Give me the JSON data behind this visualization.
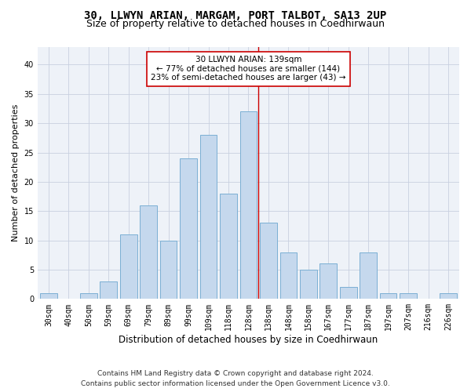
{
  "title1": "30, LLWYN ARIAN, MARGAM, PORT TALBOT, SA13 2UP",
  "title2": "Size of property relative to detached houses in Coedhirwaun",
  "xlabel": "Distribution of detached houses by size in Coedhirwaun",
  "ylabel": "Number of detached properties",
  "categories": [
    "30sqm",
    "40sqm",
    "50sqm",
    "59sqm",
    "69sqm",
    "79sqm",
    "89sqm",
    "99sqm",
    "109sqm",
    "118sqm",
    "128sqm",
    "138sqm",
    "148sqm",
    "158sqm",
    "167sqm",
    "177sqm",
    "187sqm",
    "197sqm",
    "207sqm",
    "216sqm",
    "226sqm"
  ],
  "values": [
    1,
    0,
    1,
    3,
    11,
    16,
    10,
    24,
    28,
    18,
    32,
    13,
    8,
    5,
    6,
    2,
    8,
    1,
    1,
    0,
    1
  ],
  "bar_color": "#c5d8ed",
  "bar_edge_color": "#7bafd4",
  "marker_bin_index": 11,
  "marker_line_color": "#cc0000",
  "annotation_text": "30 LLWYN ARIAN: 139sqm\n← 77% of detached houses are smaller (144)\n23% of semi-detached houses are larger (43) →",
  "annotation_box_color": "#ffffff",
  "annotation_box_edge_color": "#cc0000",
  "ylim": [
    0,
    43
  ],
  "yticks": [
    0,
    5,
    10,
    15,
    20,
    25,
    30,
    35,
    40
  ],
  "footer1": "Contains HM Land Registry data © Crown copyright and database right 2024.",
  "footer2": "Contains public sector information licensed under the Open Government Licence v3.0.",
  "bg_color": "#eef2f8",
  "title1_fontsize": 10,
  "title2_fontsize": 9,
  "xlabel_fontsize": 8.5,
  "ylabel_fontsize": 8,
  "tick_fontsize": 7,
  "footer_fontsize": 6.5,
  "annot_fontsize": 7.5
}
